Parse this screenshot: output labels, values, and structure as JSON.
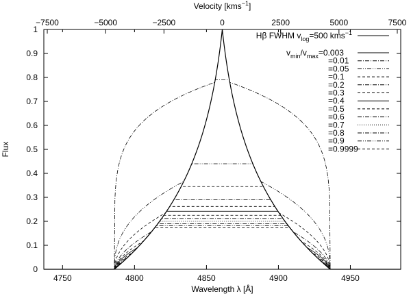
{
  "chart_data": {
    "type": "line",
    "xlabel_bottom": "Wavelength λ [Å]",
    "xlabel_top_main": "Velocity [kms",
    "xlabel_top_sup": "−1",
    "xlabel_top_end": "]",
    "ylabel": "Flux",
    "xlim": [
      4737,
      4985
    ],
    "ylim": [
      0,
      1
    ],
    "x_ticks": [
      4750,
      4800,
      4850,
      4900,
      4950
    ],
    "y_ticks": [
      0,
      0.1,
      0.2,
      0.3,
      0.4,
      0.5,
      0.6,
      0.7,
      0.8,
      0.9,
      1
    ],
    "top_ticks": [
      -7500,
      -5000,
      -2500,
      0,
      2500,
      5000,
      7500
    ],
    "top_tick_labels": [
      "−7500",
      "−5000",
      "−2500",
      "0",
      "2500",
      "5000",
      "7500"
    ],
    "center_wavelength": 4861,
    "line_half_width": 75,
    "legend_title": {
      "prefix": "Hβ FWHM v",
      "sub": "log",
      "middle": "=500 kms",
      "sup": "−1"
    },
    "legend_ratio_head": {
      "v1": "v",
      "sub1": "min",
      "slash": "/v",
      "sub2": "max",
      "value": "=0.003"
    },
    "series": [
      {
        "name": "=0.003",
        "plateau": 1.0,
        "style": "solid"
      },
      {
        "name": "=0.01",
        "plateau": 0.79,
        "style": "dashdot"
      },
      {
        "name": "=0.05",
        "plateau": 0.44,
        "style": "dashdotdot"
      },
      {
        "name": "=0.1",
        "plateau": 0.345,
        "style": "dashed"
      },
      {
        "name": "=0.2",
        "plateau": 0.29,
        "style": "dashdot"
      },
      {
        "name": "=0.3",
        "plateau": 0.262,
        "style": "dashed"
      },
      {
        "name": "=0.4",
        "plateau": 0.242,
        "style": "solid"
      },
      {
        "name": "=0.5",
        "plateau": 0.225,
        "style": "dashed"
      },
      {
        "name": "=0.6",
        "plateau": 0.212,
        "style": "dashdot"
      },
      {
        "name": "=0.7",
        "plateau": 0.2,
        "style": "dotted"
      },
      {
        "name": "=0.8",
        "plateau": 0.19,
        "style": "dashdot"
      },
      {
        "name": "=0.9",
        "plateau": 0.182,
        "style": "dashdotdot"
      },
      {
        "name": "=0.9999",
        "plateau": 0.173,
        "style": "dashed"
      }
    ],
    "grid": false,
    "legend_position": "top-right"
  }
}
